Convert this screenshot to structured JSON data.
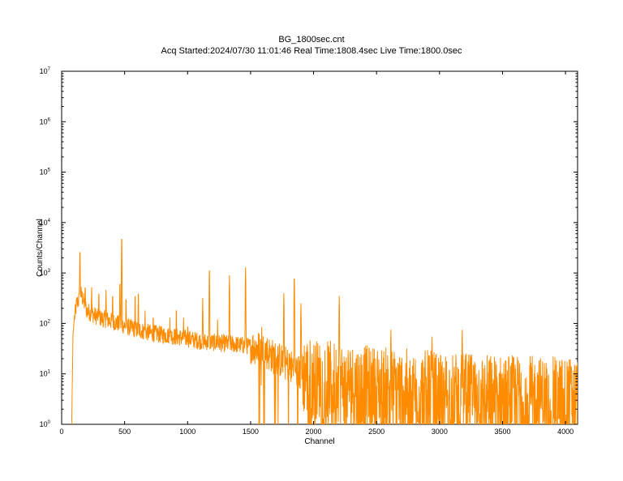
{
  "chart_data": {
    "type": "line",
    "title": "BG_1800sec.cnt",
    "subtitle": "Acq  Started:2024/07/30  11:01:46   Real  Time:1808.4sec   Live  Time:1800.0sec",
    "xlabel": "Channel",
    "ylabel": "Counts/Channel",
    "xlim": [
      0,
      4096
    ],
    "ylim": [
      1,
      10000000
    ],
    "yscale": "log",
    "grid": false,
    "x_ticks": [
      0,
      500,
      1000,
      1500,
      2000,
      2500,
      3000,
      3500,
      4000
    ],
    "y_tick_base": "10",
    "y_tick_exponents": [
      "0",
      "1",
      "2",
      "3",
      "4",
      "5",
      "6",
      "7"
    ],
    "series": [
      {
        "color": "#ff8c00",
        "x": [
          80,
          90,
          100,
          120,
          140,
          150,
          160,
          180,
          200,
          250,
          300,
          350,
          400,
          450,
          470,
          500,
          600,
          700,
          800,
          900,
          1000,
          1100,
          1200,
          1300,
          1400,
          1500,
          1550,
          1600,
          1650,
          1700,
          1750,
          1800,
          1850,
          1900,
          1950,
          2000,
          2200,
          2400,
          2600,
          2800,
          3000,
          3200,
          3400,
          3600,
          3800,
          4000,
          4096
        ],
        "y": [
          1,
          60,
          120,
          250,
          300,
          400,
          350,
          250,
          180,
          150,
          130,
          120,
          110,
          100,
          95,
          90,
          75,
          65,
          60,
          55,
          50,
          45,
          42,
          40,
          38,
          35,
          33,
          30,
          25,
          20,
          18,
          15,
          12,
          10,
          9,
          8,
          7,
          6,
          5.5,
          5,
          4.5,
          4.3,
          4,
          3.8,
          3.6,
          3.5,
          3.5
        ]
      }
    ],
    "peaks": [
      {
        "x": 145,
        "y": 3000
      },
      {
        "x": 187,
        "y": 600
      },
      {
        "x": 238,
        "y": 520
      },
      {
        "x": 295,
        "y": 450
      },
      {
        "x": 352,
        "y": 460
      },
      {
        "x": 405,
        "y": 400
      },
      {
        "x": 463,
        "y": 700
      },
      {
        "x": 477,
        "y": 5500
      },
      {
        "x": 511,
        "y": 350
      },
      {
        "x": 583,
        "y": 400
      },
      {
        "x": 609,
        "y": 450
      },
      {
        "x": 662,
        "y": 180
      },
      {
        "x": 727,
        "y": 150
      },
      {
        "x": 860,
        "y": 130
      },
      {
        "x": 911,
        "y": 210
      },
      {
        "x": 968,
        "y": 130
      },
      {
        "x": 1001,
        "y": 100
      },
      {
        "x": 1120,
        "y": 320
      },
      {
        "x": 1173,
        "y": 1300
      },
      {
        "x": 1238,
        "y": 120
      },
      {
        "x": 1332,
        "y": 900
      },
      {
        "x": 1460,
        "y": 1300
      },
      {
        "x": 1588,
        "y": 85
      },
      {
        "x": 1764,
        "y": 400
      },
      {
        "x": 1847,
        "y": 900
      },
      {
        "x": 1900,
        "y": 250
      },
      {
        "x": 2204,
        "y": 350
      },
      {
        "x": 2614,
        "y": 75
      },
      {
        "x": 2940,
        "y": 55
      },
      {
        "x": 3180,
        "y": 75
      },
      {
        "x": 3255,
        "y": 28
      },
      {
        "x": 3550,
        "y": 22
      }
    ]
  }
}
